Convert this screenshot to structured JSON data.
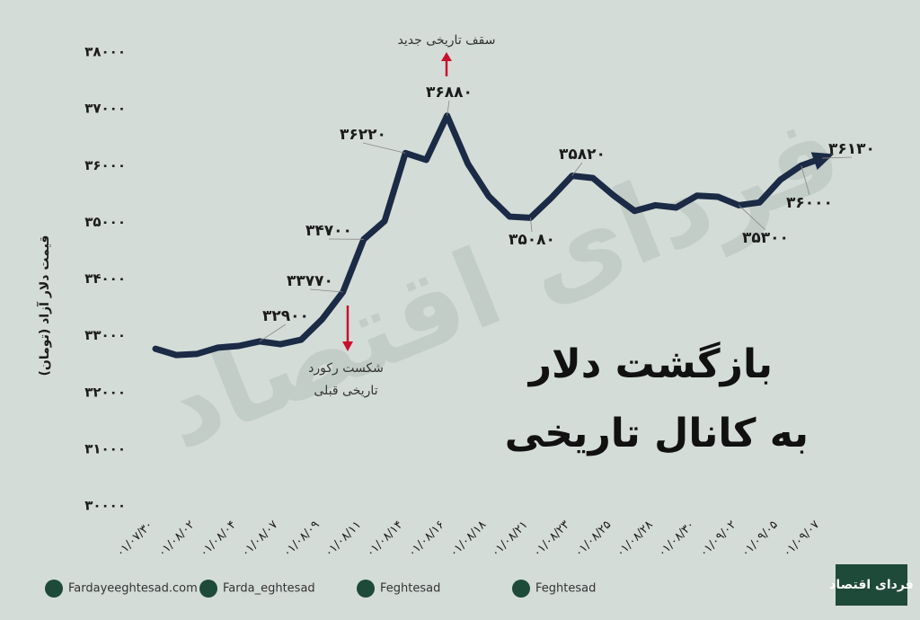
{
  "chart_data": {
    "type": "line",
    "title": [
      "بازگشت دلار",
      "به کانال تاریخی"
    ],
    "y_axis_label": "قیمت دلار آزاد (تومان)",
    "watermark": "فردای اقتصاد",
    "annotations": [
      "سقف تاریخی جدید",
      "شکست رکورد",
      "تاریخی قبلی"
    ],
    "categories": [
      "۰۱/۰۷/۳۰",
      null,
      "۰۱/۰۸/۰۲",
      null,
      "۰۱/۰۸/۰۴",
      null,
      "۰۱/۰۸/۰۷",
      null,
      "۰۱/۰۸/۰۹",
      null,
      "۰۱/۰۸/۱۱",
      null,
      "۰۱/۰۸/۱۴",
      null,
      "۰۱/۰۸/۱۶",
      null,
      "۰۱/۰۸/۱۸",
      null,
      "۰۱/۰۸/۲۱",
      null,
      "۰۱/۰۸/۲۳",
      null,
      "۰۱/۰۸/۲۵",
      null,
      "۰۱/۰۸/۲۸",
      null,
      "۰۱/۰۸/۳۰",
      null,
      "۰۱/۰۹/۰۲",
      null,
      "۰۱/۰۹/۰۵",
      null,
      "۰۱/۰۹/۰۷"
    ],
    "values": [
      32770,
      32660,
      32680,
      32790,
      32820,
      32900,
      32850,
      32930,
      33290,
      33770,
      34700,
      35020,
      36220,
      36100,
      36880,
      36030,
      35460,
      35100,
      35080,
      35430,
      35820,
      35780,
      35470,
      35200,
      35300,
      35260,
      35470,
      35450,
      35300,
      35350,
      35750,
      36000,
      36130
    ],
    "value_labels": [
      null,
      null,
      null,
      null,
      null,
      "۳۲۹۰۰",
      null,
      null,
      null,
      "۳۳۷۷۰",
      "۳۴۷۰۰",
      null,
      "۳۶۲۲۰",
      null,
      "۳۶۸۸۰",
      null,
      null,
      null,
      "۳۵۰۸۰",
      null,
      "۳۵۸۲۰",
      null,
      null,
      null,
      null,
      null,
      null,
      null,
      "۳۵۳۰۰",
      null,
      null,
      "۳۶۰۰۰",
      "۳۶۱۳۰"
    ],
    "color": "#1b2a45",
    "ylim": [
      30000,
      38000
    ],
    "yticks": [
      {
        "value": 30000,
        "label": "۳۰۰۰۰"
      },
      {
        "value": 31000,
        "label": "۳۱۰۰۰"
      },
      {
        "value": 32000,
        "label": "۳۲۰۰۰"
      },
      {
        "value": 33000,
        "label": "۳۳۰۰۰"
      },
      {
        "value": 34000,
        "label": "۳۴۰۰۰"
      },
      {
        "value": 35000,
        "label": "۳۵۰۰۰"
      },
      {
        "value": 36000,
        "label": "۳۶۰۰۰"
      },
      {
        "value": 37000,
        "label": "۳۷۰۰۰"
      },
      {
        "value": 38000,
        "label": "۳۸۰۰۰"
      }
    ],
    "grid": false
  },
  "footer": {
    "links": [
      "Fardayeeghtesad.com",
      "Farda_eghtesad",
      "Feghtesad",
      "Feghtesad"
    ],
    "logo": "فردای اقتصاد"
  }
}
